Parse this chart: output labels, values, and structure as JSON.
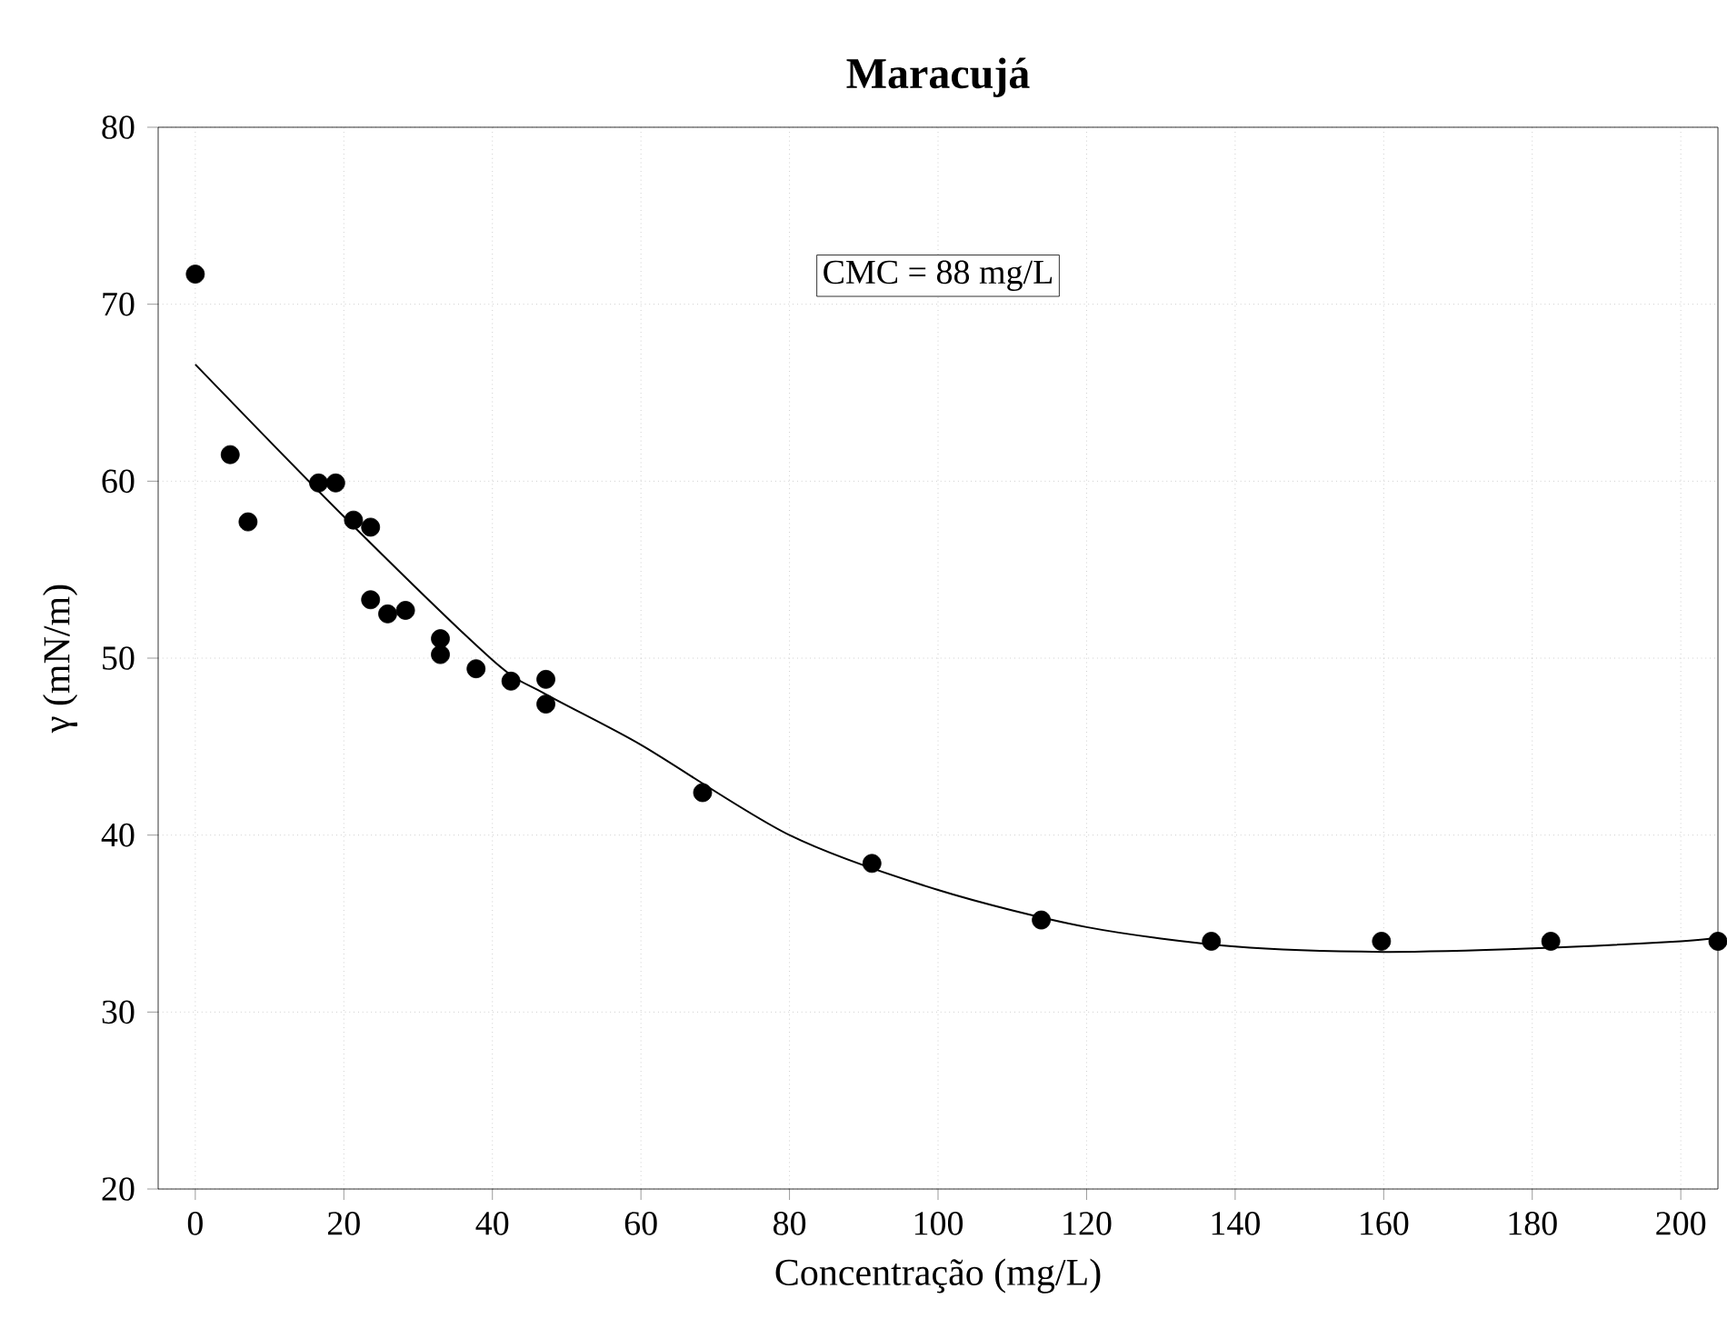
{
  "chart_data": {
    "type": "scatter",
    "title": "Maracujá",
    "xlabel": "Concentração (mg/L)",
    "ylabel": "γ (mN/m)",
    "annotations": [
      "CMC = 88 mg/L"
    ],
    "series": [
      {
        "color": "#000000",
        "x": [
          0,
          4.7,
          7.1,
          16.6,
          18.9,
          21.3,
          23.6,
          23.6,
          25.9,
          28.3,
          33.0,
          33.0,
          37.8,
          42.5,
          47.2,
          47.2,
          68.3,
          91.1,
          113.9,
          136.8,
          159.7,
          182.5,
          205
        ],
        "values": [
          71.7,
          61.5,
          57.7,
          59.9,
          59.9,
          57.8,
          57.4,
          53.3,
          52.5,
          52.7,
          51.1,
          50.2,
          49.4,
          48.7,
          48.8,
          47.4,
          42.4,
          38.4,
          35.2,
          34.0,
          34.0,
          34.0,
          34.0
        ]
      },
      {
        "type": "line",
        "color": "#000000",
        "marker": "none",
        "x": [
          0,
          20,
          40,
          47,
          60,
          80,
          100,
          120,
          140,
          160,
          180,
          200,
          205
        ],
        "values": [
          66.6,
          58.0,
          49.9,
          48.0,
          45.1,
          40.0,
          36.9,
          34.8,
          33.7,
          33.4,
          33.6,
          34.0,
          34.2
        ]
      }
    ],
    "xlim": [
      -5,
      205
    ],
    "ylim": [
      20,
      80
    ],
    "xticks": [
      0,
      20,
      40,
      60,
      80,
      100,
      120,
      140,
      160,
      180,
      200
    ],
    "yticks": [
      20,
      30,
      40,
      50,
      60,
      70,
      80
    ],
    "grid": true,
    "marker": "circle"
  }
}
